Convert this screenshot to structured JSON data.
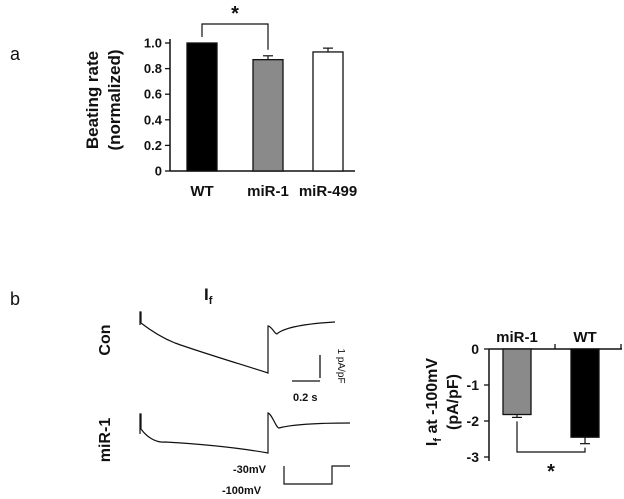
{
  "panels": {
    "a": "a",
    "b": "b"
  },
  "chart_data": [
    {
      "type": "bar",
      "panel": "a",
      "title": "",
      "xlabel": "",
      "ylabel_line1": "Beating rate",
      "ylabel_line2": "(normalized)",
      "categories": [
        "WT",
        "miR-1",
        "miR-499"
      ],
      "values": [
        1.0,
        0.87,
        0.93
      ],
      "errors": [
        0,
        0.03,
        0.03
      ],
      "bar_colors": [
        "#000000",
        "#8a8a8a",
        "#ffffff"
      ],
      "ylim": [
        0,
        1.0
      ],
      "yticks": [
        "0",
        "0.2",
        "0.4",
        "0.6",
        "0.8",
        "1.0"
      ],
      "significance": {
        "pair": [
          "WT",
          "miR-1"
        ],
        "symbol": "*"
      },
      "grid": false,
      "legend": "none"
    },
    {
      "type": "line",
      "panel": "b-traces",
      "title_main": "I",
      "title_sub": "f",
      "series": [
        {
          "name": "Con"
        },
        {
          "name": "miR-1"
        }
      ],
      "scale_bar": {
        "current": "1 pA/pF",
        "time": "0.2 s"
      },
      "protocol_labels": {
        "hold": "-30mV",
        "step": "-100mV"
      }
    },
    {
      "type": "bar",
      "panel": "b-summary",
      "title": "",
      "ylabel_main": "I",
      "ylabel_sub": "f",
      "ylabel_rest": " at -100mV",
      "ylabel_line2": "(pA/pF)",
      "categories": [
        "miR-1",
        "WT"
      ],
      "values": [
        -1.82,
        -2.45
      ],
      "errors": [
        0.08,
        0.18
      ],
      "bar_colors": [
        "#8a8a8a",
        "#000000"
      ],
      "ylim": [
        -3,
        0
      ],
      "yticks": [
        "0",
        "-1",
        "-2",
        "-3"
      ],
      "significance": {
        "pair": [
          "miR-1",
          "WT"
        ],
        "symbol": "*"
      },
      "grid": false,
      "legend": "none"
    }
  ]
}
